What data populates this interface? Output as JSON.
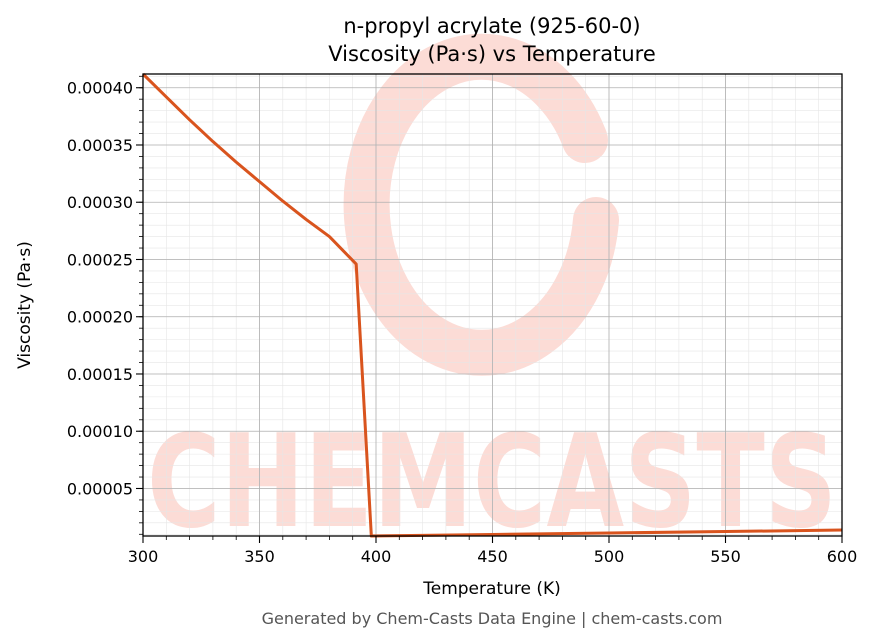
{
  "chart_data": {
    "type": "line",
    "title": "n-propyl acrylate (925-60-0)",
    "subtitle": "Viscosity (Pa·s) vs Temperature",
    "xlabel": "Temperature (K)",
    "ylabel": "Viscosity (Pa·s)",
    "xlim": [
      300,
      600
    ],
    "ylim": [
      8.5e-06,
      0.000412
    ],
    "x_ticks": [
      "300",
      "350",
      "400",
      "450",
      "500",
      "550",
      "600"
    ],
    "y_ticks": [
      "0.00005",
      "0.00010",
      "0.00015",
      "0.00020",
      "0.00025",
      "0.00030",
      "0.00035",
      "0.00040"
    ],
    "grid": true,
    "line_color": "#d9541e",
    "series": [
      {
        "x": [
          300,
          310,
          320,
          330,
          340,
          350,
          360,
          370,
          380,
          391.5,
          398,
          450,
          500,
          550,
          600
        ],
        "y": [
          0.000412,
          0.000392,
          0.000372,
          0.000353,
          0.000335,
          0.000318,
          0.000301,
          0.000285,
          0.00027,
          0.000246,
          8.5e-06,
          9.8e-06,
          1.11e-05,
          1.24e-05,
          1.37e-05
        ]
      }
    ]
  },
  "watermark": {
    "text": "CHEMCASTS",
    "color": "#fcdcd6"
  },
  "footer": "Generated by Chem-Casts Data Engine | chem-casts.com"
}
